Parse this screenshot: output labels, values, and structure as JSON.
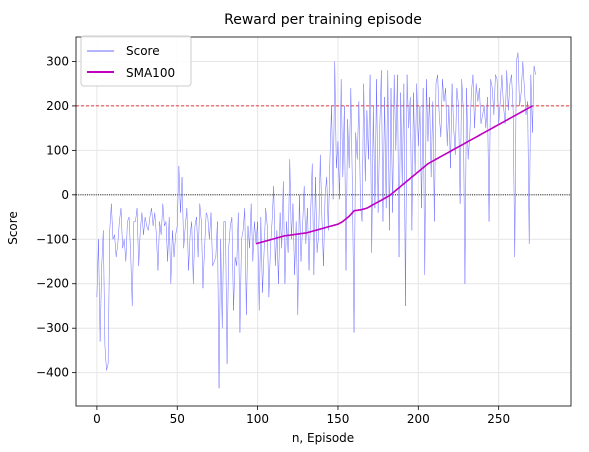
{
  "chart_data": {
    "type": "line",
    "title": "Reward per training episode",
    "xlabel": "n, Episode",
    "ylabel": "Score",
    "xlim": [
      -13,
      295
    ],
    "ylim": [
      -475,
      355
    ],
    "xticks": [
      0,
      50,
      100,
      150,
      200,
      250
    ],
    "yticks": [
      -400,
      -300,
      -200,
      -100,
      0,
      100,
      200,
      300
    ],
    "grid": true,
    "legend_position": "top-left",
    "reference_lines": [
      {
        "y": 200,
        "color": "#e00000",
        "style": "dashed"
      },
      {
        "y": 0,
        "color": "#000000",
        "style": "dotted"
      }
    ],
    "series": [
      {
        "name": "Score",
        "color": "#6a6aff",
        "x_start": 0,
        "values": [
          -230,
          -100,
          -330,
          -160,
          -80,
          -340,
          -395,
          -380,
          -80,
          -20,
          -100,
          -90,
          -140,
          -110,
          -60,
          -30,
          -120,
          -100,
          -150,
          -60,
          -50,
          -130,
          -250,
          -60,
          -60,
          -30,
          -160,
          -80,
          -40,
          -90,
          -50,
          -70,
          -80,
          -50,
          -30,
          -70,
          -40,
          -90,
          -170,
          -60,
          -90,
          -20,
          -70,
          -60,
          -150,
          -50,
          -200,
          -80,
          -140,
          -90,
          -70,
          65,
          -40,
          40,
          -120,
          -70,
          -30,
          -170,
          -90,
          -60,
          -200,
          -70,
          -50,
          -140,
          -20,
          -60,
          -210,
          -120,
          -40,
          -50,
          -100,
          -40,
          -160,
          -150,
          -140,
          -60,
          -435,
          -100,
          -300,
          -60,
          -60,
          -380,
          -120,
          -70,
          -50,
          -260,
          -140,
          -160,
          -40,
          -310,
          -100,
          -80,
          -30,
          -270,
          -70,
          -120,
          -20,
          -150,
          -60,
          -110,
          -60,
          -260,
          -50,
          -220,
          -130,
          -30,
          -70,
          -230,
          -120,
          -60,
          20,
          -160,
          -80,
          -200,
          -40,
          -120,
          30,
          -200,
          -60,
          -130,
          80,
          -100,
          -20,
          -180,
          -60,
          -270,
          0,
          -150,
          -70,
          20,
          -110,
          -30,
          -170,
          -40,
          70,
          -180,
          40,
          -130,
          -90,
          90,
          -50,
          -160,
          0,
          40,
          -80,
          80,
          200,
          -10,
          300,
          60,
          120,
          -10,
          260,
          40,
          200,
          -170,
          170,
          60,
          240,
          10,
          -310,
          140,
          80,
          210,
          -20,
          -60,
          250,
          30,
          190,
          80,
          270,
          -130,
          200,
          -30,
          260,
          -40,
          150,
          280,
          -60,
          220,
          -30,
          280,
          -80,
          240,
          -40,
          270,
          100,
          270,
          -140,
          230,
          20,
          250,
          -250,
          270,
          150,
          220,
          -80,
          230,
          50,
          250,
          110,
          200,
          -30,
          240,
          -180,
          260,
          120,
          220,
          40,
          210,
          -60,
          250,
          270,
          180,
          130,
          260,
          210,
          240,
          110,
          200,
          60,
          250,
          150,
          90,
          240,
          200,
          -20,
          260,
          190,
          -200,
          240,
          80,
          130,
          230,
          270,
          150,
          250,
          210,
          240,
          160,
          180,
          200,
          150,
          220,
          -60,
          260,
          240,
          180,
          270,
          260,
          160,
          210,
          270,
          200,
          160,
          280,
          190,
          250,
          270,
          190,
          -140,
          300,
          320,
          200,
          230,
          300,
          240,
          180,
          210,
          -110,
          270,
          140,
          290,
          270
        ]
      },
      {
        "name": "SMA100",
        "color": "#c000c0",
        "x_start": 99,
        "values": [
          -110,
          -109,
          -108,
          -107,
          -106,
          -105,
          -104,
          -103,
          -102,
          -101,
          -100,
          -99,
          -98,
          -97,
          -96,
          -95,
          -94,
          -93,
          -92,
          -92,
          -91,
          -91,
          -90,
          -90,
          -89,
          -89,
          -88,
          -88,
          -87,
          -87,
          -86,
          -86,
          -85,
          -84,
          -83,
          -82,
          -81,
          -80,
          -79,
          -78,
          -77,
          -76,
          -75,
          -74,
          -73,
          -72,
          -71,
          -70,
          -69,
          -68,
          -67,
          -66,
          -64,
          -62,
          -60,
          -57,
          -54,
          -51,
          -48,
          -44,
          -40,
          -36,
          -35,
          -35,
          -34,
          -34,
          -33,
          -32,
          -31,
          -30,
          -28,
          -26,
          -24,
          -22,
          -20,
          -18,
          -16,
          -14,
          -12,
          -10,
          -8,
          -6,
          -4,
          -2,
          1,
          4,
          7,
          10,
          13,
          16,
          19,
          22,
          25,
          28,
          31,
          34,
          37,
          40,
          43,
          46,
          49,
          52,
          55,
          58,
          61,
          64,
          67,
          70,
          72,
          74,
          76,
          78,
          80,
          82,
          84,
          86,
          88,
          90,
          92,
          94,
          96,
          98,
          100,
          102,
          104,
          106,
          108,
          110,
          112,
          114,
          116,
          118,
          120,
          122,
          124,
          126,
          128,
          130,
          132,
          134,
          136,
          138,
          140,
          142,
          144,
          146,
          148,
          150,
          152,
          154,
          156,
          158,
          160,
          162,
          164,
          166,
          168,
          170,
          172,
          174,
          176,
          178,
          180,
          182,
          184,
          186,
          188,
          190,
          192,
          194,
          196,
          198,
          200
        ]
      }
    ]
  }
}
